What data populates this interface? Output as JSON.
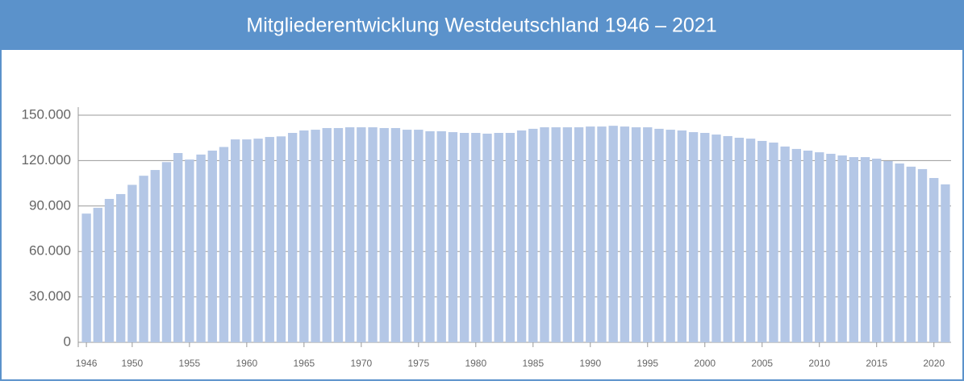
{
  "chart_data": {
    "type": "bar",
    "title": "Mitgliederentwicklung Westdeutschland 1946 – 2021",
    "categories": [
      "1946",
      null,
      null,
      null,
      "1950",
      null,
      null,
      null,
      null,
      "1955",
      null,
      null,
      null,
      null,
      "1960",
      null,
      null,
      null,
      null,
      "1965",
      null,
      null,
      null,
      null,
      "1970",
      null,
      null,
      null,
      null,
      "1975",
      null,
      null,
      null,
      null,
      "1980",
      null,
      null,
      null,
      null,
      "1985",
      null,
      null,
      null,
      null,
      "1990",
      null,
      null,
      null,
      null,
      "1995",
      null,
      null,
      null,
      null,
      "2000",
      null,
      null,
      null,
      null,
      "2005",
      null,
      null,
      null,
      null,
      "2010",
      null,
      null,
      null,
      null,
      "2015",
      null,
      null,
      null,
      null,
      "2020",
      null
    ],
    "values": [
      85000,
      88800,
      94700,
      97900,
      104000,
      110000,
      113800,
      119000,
      125000,
      120700,
      124000,
      126600,
      129000,
      134000,
      134000,
      134500,
      135600,
      136000,
      138300,
      139900,
      140400,
      141500,
      141500,
      142000,
      142000,
      142000,
      141500,
      141500,
      140400,
      140400,
      139400,
      139400,
      138800,
      138300,
      138300,
      137800,
      138300,
      138300,
      139900,
      141000,
      142000,
      142000,
      142000,
      142000,
      142500,
      142500,
      143000,
      142500,
      142000,
      142000,
      141000,
      140400,
      139900,
      138800,
      138300,
      137200,
      136200,
      135100,
      134500,
      133000,
      131900,
      129300,
      127700,
      126600,
      125500,
      124500,
      123400,
      122300,
      122300,
      121300,
      119700,
      118100,
      116000,
      114400,
      108500,
      104300
    ],
    "color": "#b4c7e6",
    "ylim": [
      0,
      150000
    ],
    "yticks": [
      0,
      {
        "value": 30000,
        "label": "30.000"
      },
      {
        "value": 60000,
        "label": "60.000"
      },
      {
        "value": 90000,
        "label": "90.000"
      },
      {
        "value": 120000,
        "label": "120.000"
      },
      {
        "value": 150000,
        "label": "150.000"
      }
    ],
    "grid": true
  }
}
